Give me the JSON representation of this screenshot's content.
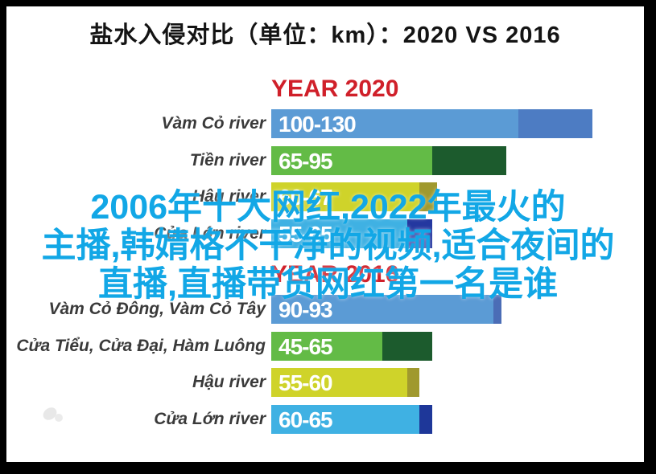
{
  "frame": {
    "border_color": "#000000",
    "background": "#ffffff"
  },
  "title": "盐水入侵对比（单位：km）：2020 VS 2016",
  "overlay": {
    "color": "#12a7e6",
    "lines": [
      "2006年十大网红,2022年最火的",
      "主播,韩婧格不干净的视频,适合夜间的",
      "直播,直播带货网红第一名是谁"
    ]
  },
  "chart_data": {
    "type": "bar",
    "orientation": "horizontal",
    "title": "盐水入侵对比（单位：km）：2020 VS 2016",
    "unit": "km",
    "xlim": [
      0,
      145
    ],
    "accent_red": "#d0202a",
    "groups": [
      {
        "label": "YEAR 2020",
        "rows": [
          {
            "category": "Vàm Cỏ river",
            "range_label": "100-130",
            "min": 100,
            "max": 130,
            "color_main": "#5b9bd5",
            "color_ext": "#4d7cc3"
          },
          {
            "category": "Tiền river",
            "range_label": "65-95",
            "min": 65,
            "max": 95,
            "color_main": "#63bb46",
            "color_ext": "#1c5b2d"
          },
          {
            "category": "Hậu river",
            "range_label": "60-67",
            "min": 60,
            "max": 67,
            "color_main": "#cfd32a",
            "color_ext": "#a0992e"
          },
          {
            "category": "Cửa Lớn river",
            "range_label": "55-65",
            "min": 55,
            "max": 65,
            "color_main": "#3fb1e3",
            "color_ext": "#2438a0"
          }
        ]
      },
      {
        "label": "YEAR 2016",
        "rows": [
          {
            "category": "Vàm Cỏ Đông, Vàm Cỏ Tây",
            "range_label": "90-93",
            "min": 90,
            "max": 93,
            "color_main": "#5b9bd5",
            "color_ext": "#4b6db6"
          },
          {
            "category": "Cửa Tiểu, Cửa Đại, Hàm Luông",
            "range_label": "45-65",
            "min": 45,
            "max": 65,
            "color_main": "#63bb46",
            "color_ext": "#1c5b2d"
          },
          {
            "category": "Hậu river",
            "range_label": "55-60",
            "min": 55,
            "max": 60,
            "color_main": "#cfd32a",
            "color_ext": "#a0992e"
          },
          {
            "category": "Cửa Lớn river",
            "range_label": "60-65",
            "min": 60,
            "max": 65,
            "color_main": "#3fb1e3",
            "color_ext": "#1e3799"
          }
        ]
      }
    ]
  }
}
